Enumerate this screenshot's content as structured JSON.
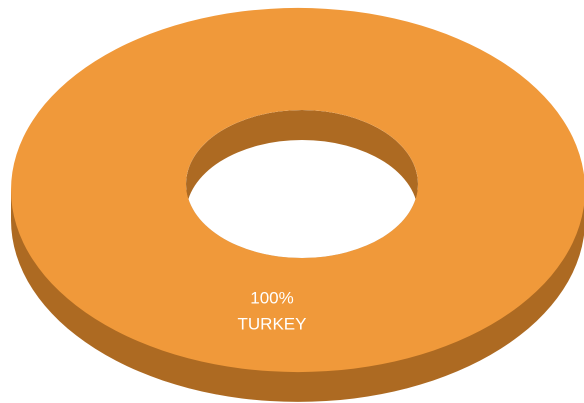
{
  "chart_data": {
    "type": "pie",
    "categories": [
      "TURKEY"
    ],
    "values": [
      100
    ],
    "value_labels": [
      "100%"
    ],
    "colors": [
      "#f0993a"
    ],
    "side_colors": [
      "#ad6a22"
    ]
  }
}
